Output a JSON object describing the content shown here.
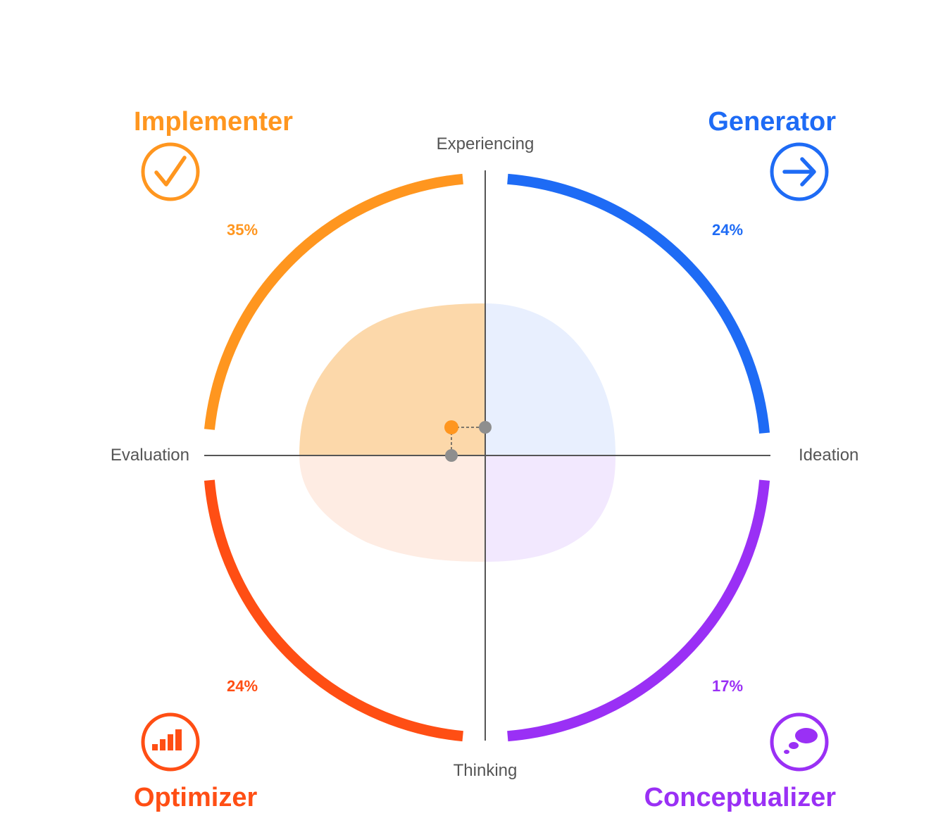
{
  "axes": {
    "top": "Experiencing",
    "bottom": "Thinking",
    "left": "Evaluation",
    "right": "Ideation"
  },
  "quadrants": {
    "implementer": {
      "title": "Implementer",
      "percent": "35%",
      "color": "#FF961F",
      "icon": "checkmark-circle-icon"
    },
    "generator": {
      "title": "Generator",
      "percent": "24%",
      "color": "#1E6BF5",
      "icon": "arrow-right-circle-icon"
    },
    "optimizer": {
      "title": "Optimizer",
      "percent": "24%",
      "color": "#FF4E14",
      "icon": "bar-chart-circle-icon"
    },
    "conceptualizer": {
      "title": "Conceptualizer",
      "percent": "17%",
      "color": "#9A30F5",
      "icon": "thought-bubble-circle-icon"
    }
  },
  "colors": {
    "axis_line": "#555555",
    "marker_point": "#FF961F",
    "projection_point": "#8E8E8E"
  }
}
